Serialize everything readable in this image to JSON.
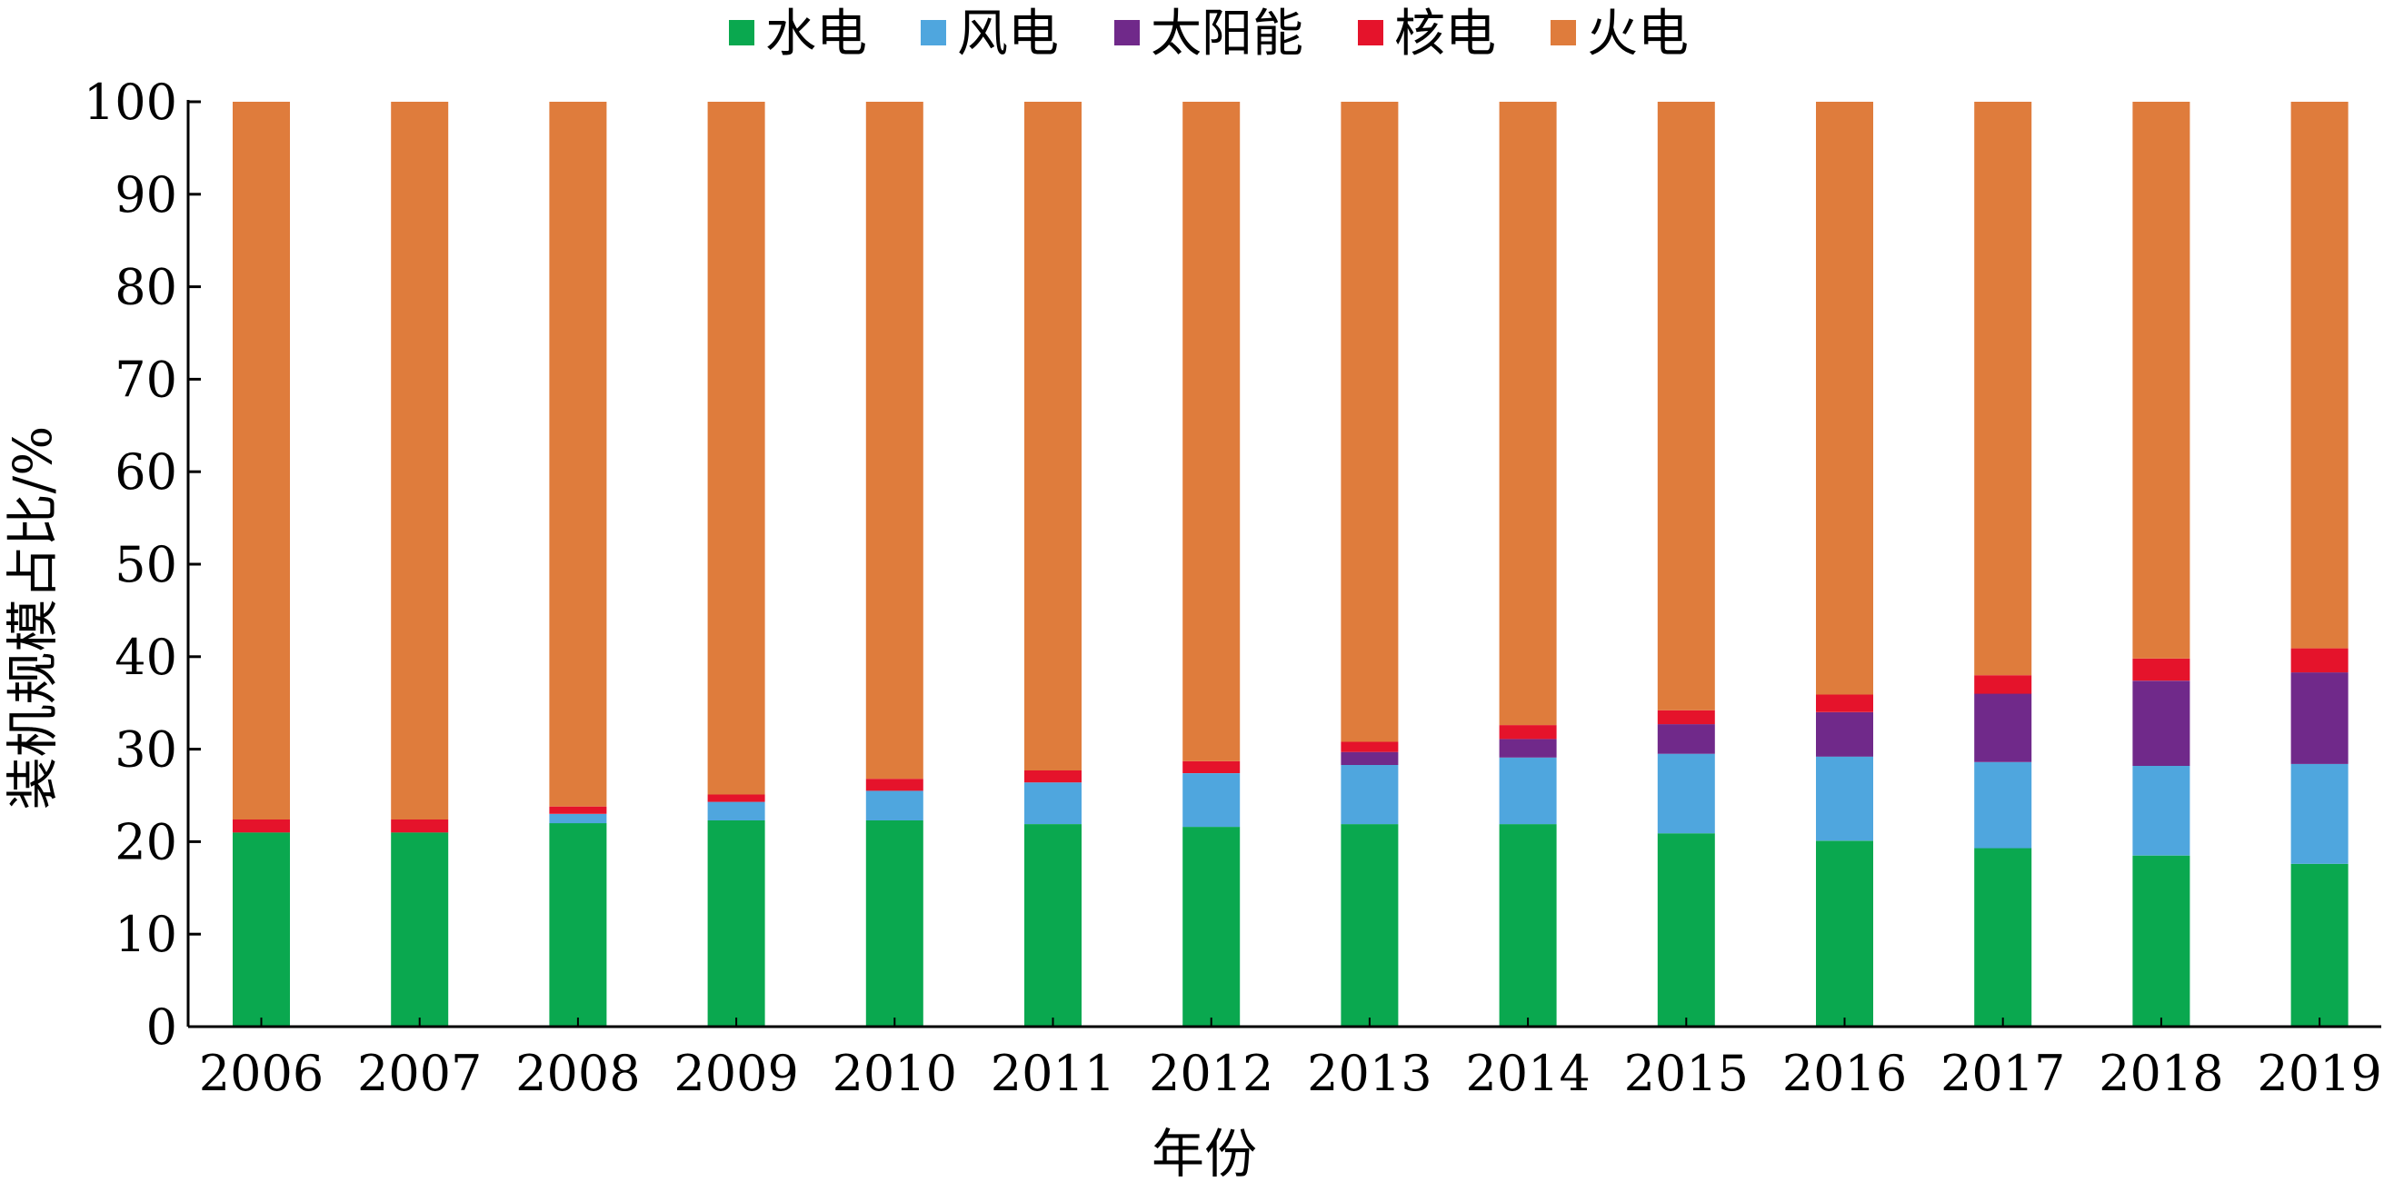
{
  "chart_data": {
    "type": "bar",
    "stacked": true,
    "categories": [
      "2006",
      "2007",
      "2008",
      "2009",
      "2010",
      "2011",
      "2012",
      "2013",
      "2014",
      "2015",
      "2016",
      "2017",
      "2018",
      "2019"
    ],
    "series": [
      {
        "name": "水电",
        "color": "#0aa84f",
        "values": [
          21.0,
          21.0,
          22.0,
          22.3,
          22.3,
          21.9,
          21.6,
          21.9,
          21.9,
          20.9,
          20.1,
          19.3,
          18.5,
          17.6
        ]
      },
      {
        "name": "风电",
        "color": "#4fa6de",
        "values": [
          0.0,
          0.0,
          1.0,
          2.0,
          3.2,
          4.5,
          5.8,
          6.4,
          7.2,
          8.6,
          9.1,
          9.3,
          9.7,
          10.8
        ]
      },
      {
        "name": "太阳能",
        "color": "#70298a",
        "values": [
          0.0,
          0.0,
          0.0,
          0.0,
          0.0,
          0.0,
          0.0,
          1.4,
          2.0,
          3.2,
          4.8,
          7.4,
          9.2,
          9.9
        ]
      },
      {
        "name": "核电",
        "color": "#e5132b",
        "values": [
          1.4,
          1.4,
          0.8,
          0.8,
          1.3,
          1.3,
          1.3,
          1.1,
          1.5,
          1.5,
          1.9,
          2.0,
          2.4,
          2.6
        ]
      },
      {
        "name": "火电",
        "color": "#df7c3c",
        "values": [
          77.6,
          77.6,
          76.2,
          74.9,
          73.2,
          72.3,
          71.3,
          69.2,
          67.4,
          65.8,
          64.1,
          62.0,
          60.2,
          59.1
        ]
      }
    ],
    "xlabel": "年份",
    "ylabel": "装机规模占比/%",
    "ylim": [
      0,
      100
    ],
    "yticks": [
      "0",
      "10",
      "20",
      "30",
      "40",
      "50",
      "60",
      "70",
      "80",
      "90",
      "100"
    ],
    "grid": false,
    "legend": "top-center"
  }
}
